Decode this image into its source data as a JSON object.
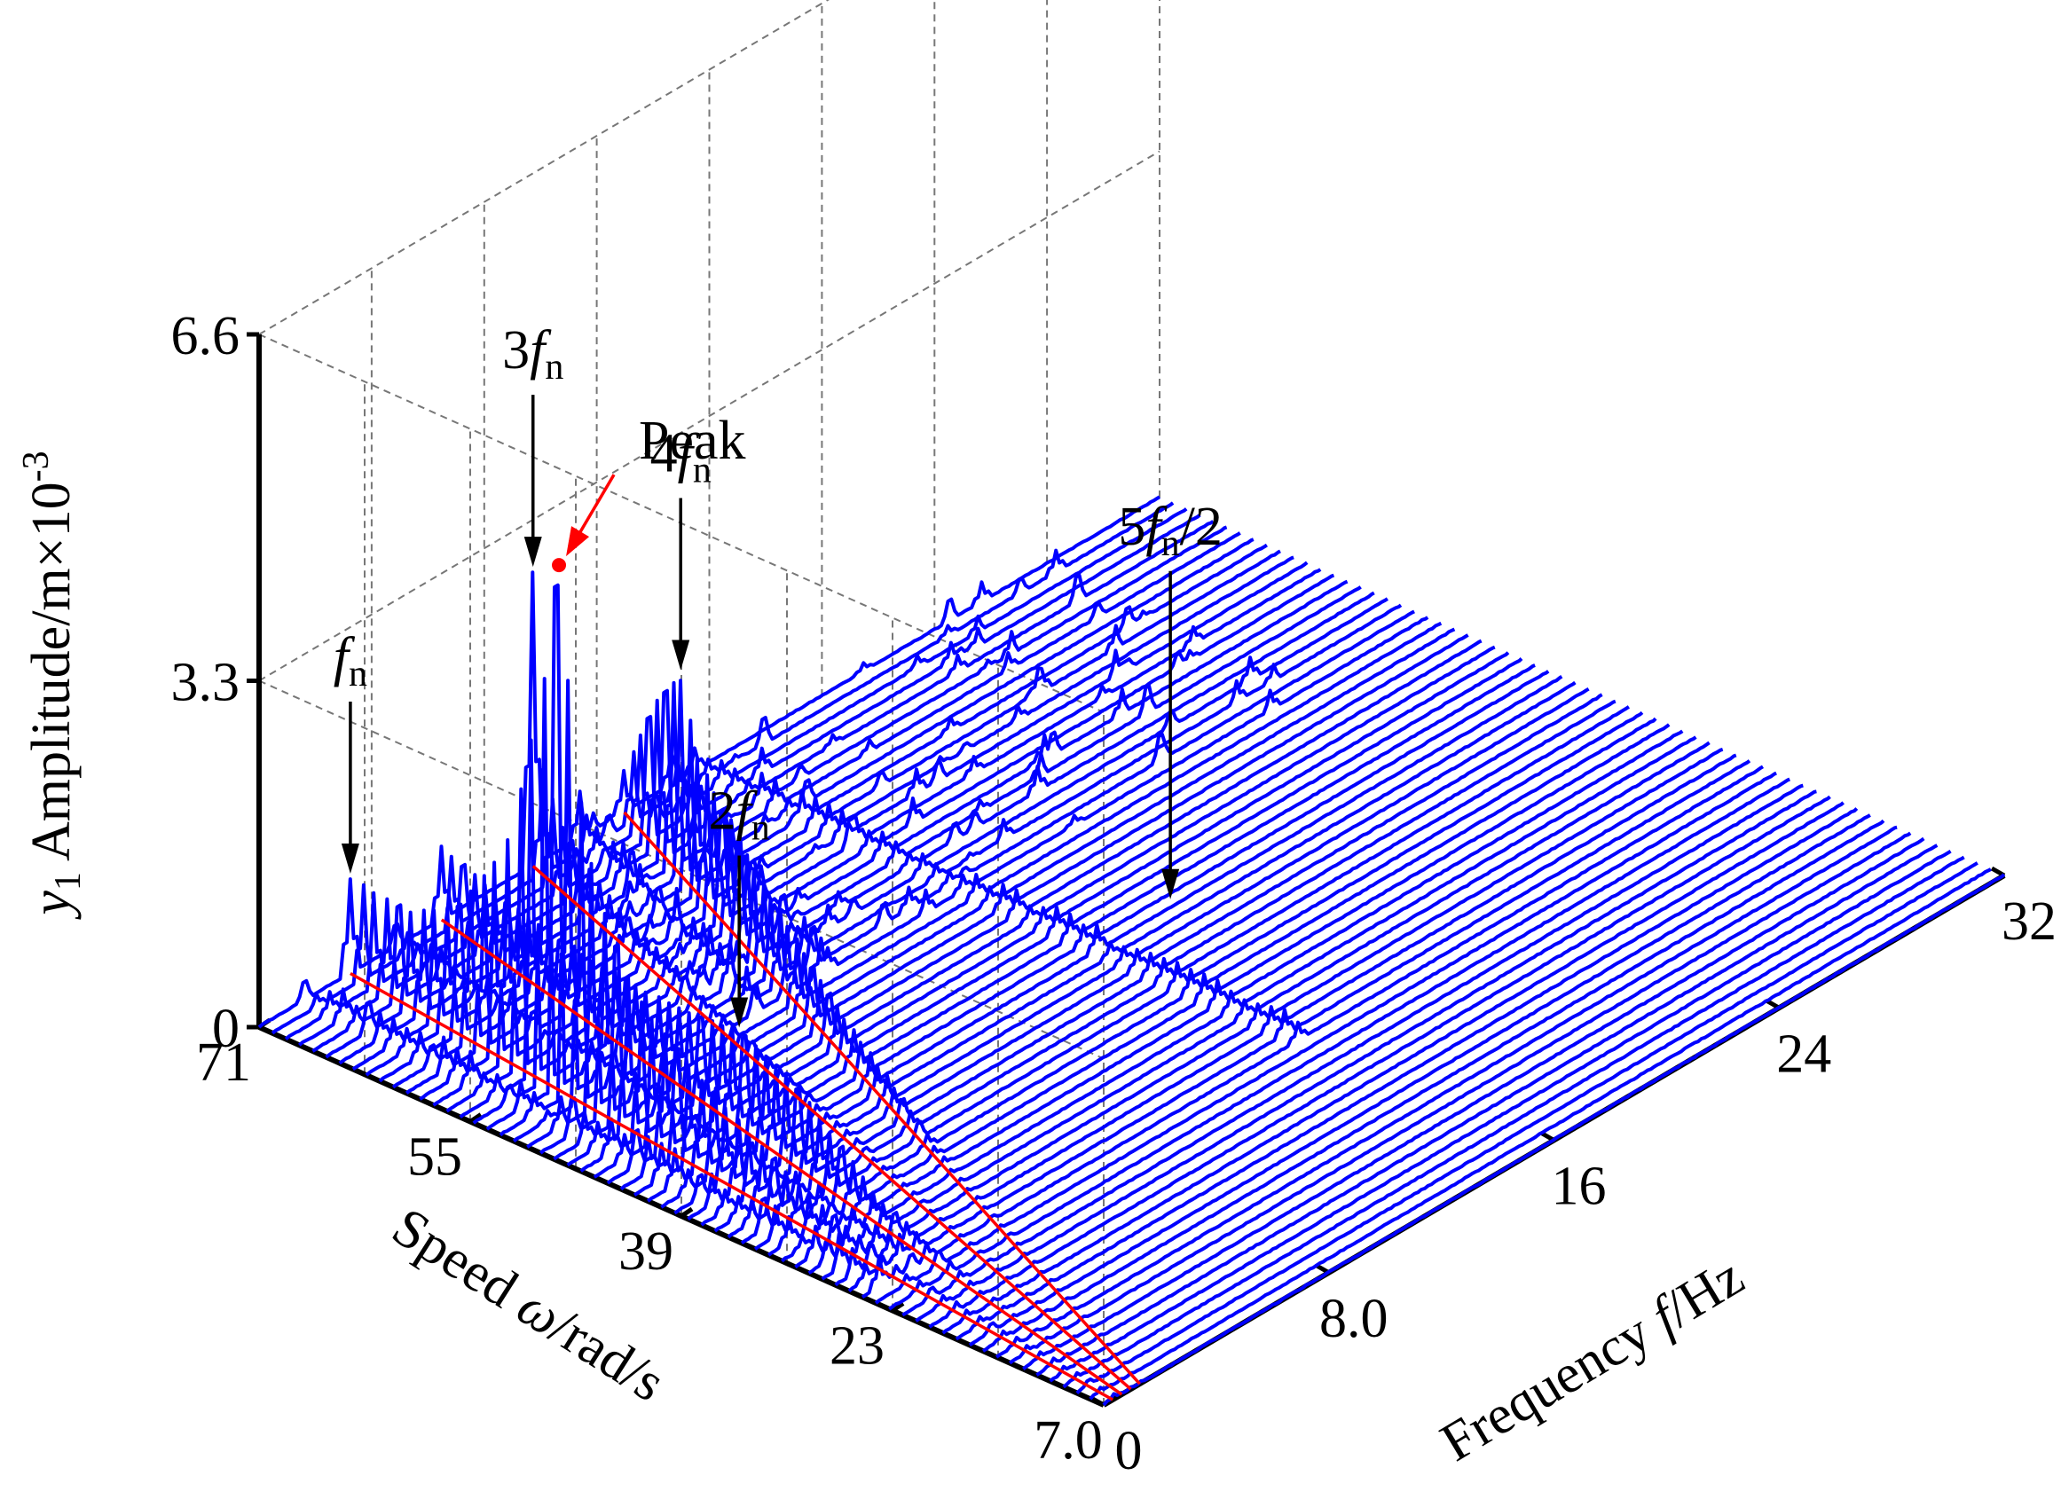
{
  "chart_data": {
    "type": "waterfall-3d",
    "title": "",
    "x_axis": {
      "label_prefix": "Frequency ",
      "label_var": "f",
      "label_suffix": "/Hz",
      "range": [
        0,
        32
      ],
      "ticks": [
        "0",
        "8.0",
        "16",
        "24",
        "32"
      ]
    },
    "y_axis": {
      "label_prefix": "Speed ",
      "label_var": "ω",
      "label_suffix": "/rad/s",
      "range": [
        7.0,
        71
      ],
      "ticks": [
        "7.0",
        "23",
        "39",
        "55",
        "71"
      ]
    },
    "z_axis": {
      "label_var": "y",
      "label_sub": "1",
      "label_main": " Amplitude/m×10",
      "label_sup": "-3",
      "range": [
        0,
        6.6
      ],
      "ticks": [
        "0",
        "3.3",
        "6.6"
      ]
    },
    "num_traces": 64,
    "series": [
      {
        "name": "fn",
        "label_main": "f",
        "label_sub": "n",
        "frequency_over_speed": 0.0457,
        "peaks_by_speed": [
          [
            7,
            0.05
          ],
          [
            25,
            0.1
          ],
          [
            33,
            0.35
          ],
          [
            41,
            0.8
          ],
          [
            47,
            1.3
          ],
          [
            50,
            2.0
          ],
          [
            52,
            3.0
          ],
          [
            53.5,
            5.0
          ],
          [
            55,
            3.6
          ],
          [
            58,
            2.0
          ],
          [
            62,
            1.2
          ],
          [
            66,
            0.9
          ],
          [
            71,
            0.9
          ]
        ]
      },
      {
        "name": "2fn",
        "label_main": "2f",
        "label_sub": "n",
        "frequency_over_speed": 0.0914,
        "peaks_by_speed": [
          [
            7,
            0.02
          ],
          [
            20,
            0.05
          ],
          [
            30,
            0.25
          ],
          [
            38,
            0.8
          ],
          [
            43,
            0.9
          ],
          [
            50,
            0.7
          ],
          [
            58,
            0.6
          ],
          [
            66,
            0.6
          ],
          [
            71,
            0.7
          ]
        ]
      },
      {
        "name": "5fn/2",
        "label_main": "5f",
        "label_sub": "n",
        "label_tail": "/2",
        "frequency": 15.5,
        "annotation_speed": 35,
        "annotation_amplitude": 0.8
      },
      {
        "name": "3fn",
        "label_main": "3f",
        "label_sub": "n",
        "frequency_over_speed": 0.1371,
        "peaks_by_speed": [
          [
            7,
            0.02
          ],
          [
            30,
            0.05
          ],
          [
            50,
            0.15
          ],
          [
            62,
            0.3
          ],
          [
            68,
            0.6
          ],
          [
            70,
            1.0
          ],
          [
            71,
            2.8
          ]
        ]
      },
      {
        "name": "4fn",
        "label_main": "4f",
        "label_sub": "n",
        "frequency_over_speed": 0.1828,
        "peaks_by_speed": [
          [
            7,
            0.02
          ],
          [
            30,
            0.05
          ],
          [
            45,
            0.4
          ],
          [
            52,
            0.7
          ],
          [
            58,
            1.0
          ],
          [
            62,
            1.3
          ],
          [
            64,
            1.9
          ],
          [
            67,
            1.4
          ],
          [
            71,
            0.4
          ]
        ]
      }
    ],
    "peak": {
      "label": "Peak",
      "speed": 53.5,
      "frequency": 2.45,
      "amplitude": 5.0
    },
    "colors": {
      "traces": "#0000ff",
      "ridges": "#ff0000",
      "peak": "#ff0000",
      "grid": "#777777",
      "axes": "#000000"
    }
  }
}
